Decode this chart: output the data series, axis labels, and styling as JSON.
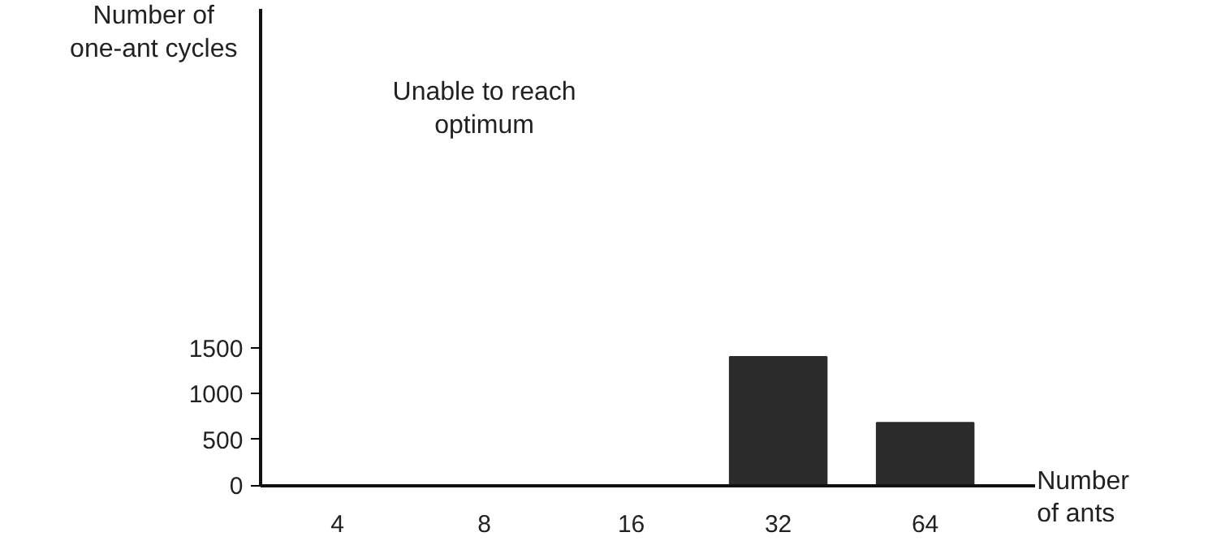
{
  "chart_data": {
    "type": "bar",
    "categories": [
      "4",
      "8",
      "16",
      "32",
      "64"
    ],
    "values": [
      null,
      null,
      null,
      1400,
      680
    ],
    "color": "#2b2b2b",
    "xlabel": "Number\nof ants",
    "ylabel": "Number of\none-ant cycles",
    "ylim": [
      0,
      5200
    ],
    "yticks": [
      0,
      500,
      1000,
      1500
    ],
    "annotations": [
      "Unable to reach\noptimum"
    ],
    "grid": false
  }
}
